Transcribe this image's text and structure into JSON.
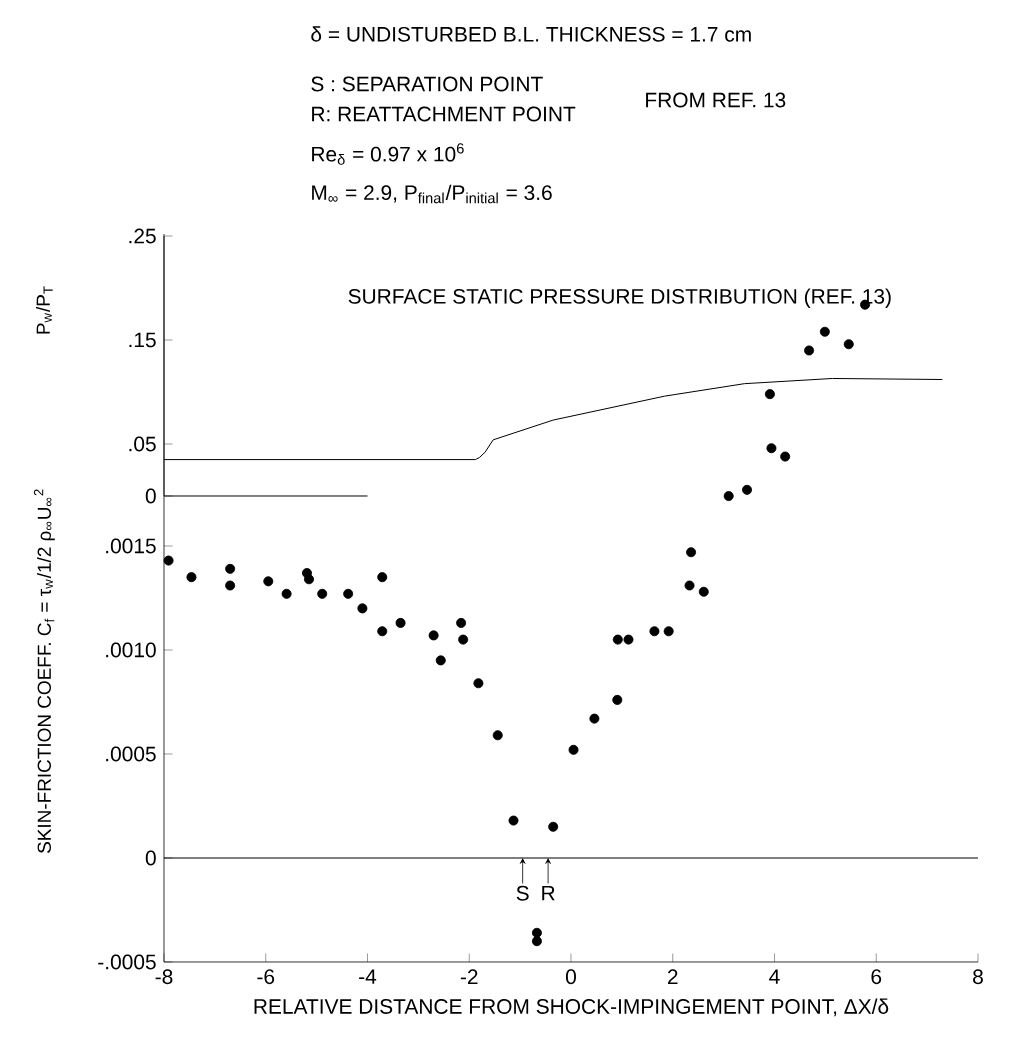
{
  "chart_data": [
    {
      "type": "line",
      "title": "SURFACE STATIC PRESSURE DISTRIBUTION (REF. 13)",
      "ylabel": "P$_{w}$/P$_{T}$",
      "annotations": [
        "δ = UNDISTURBED B.L. THICKNESS = 1.7 cm",
        "S : SEPARATION POINT",
        "R: REATTACHMENT POINT",
        "FROM REF. 13",
        "Re$_{δ}$ = 0.97 x 10$^{6}$",
        "M$_{∞}$ = 2.9, P$_{final}$/P$_{initial}$ = 3.6"
      ],
      "xlim": [
        -8,
        8
      ],
      "ylim": [
        0,
        0.25
      ],
      "yticks": [
        {
          "value": 0,
          "label": "0"
        },
        {
          "value": 0.05,
          "label": ".05"
        },
        {
          "value": 0.15,
          "label": ".15"
        },
        {
          "value": 0.25,
          "label": ".25"
        }
      ],
      "tick_labels": "y",
      "series": [
        {
          "color": "#000000",
          "x": [
            -8,
            -1.88,
            -1.8,
            -1.69,
            -1.53,
            -0.35,
            1.84,
            3.41,
            5.14,
            7.3
          ],
          "values": [
            0.035,
            0.035,
            0.037,
            0.042,
            0.054,
            0.073,
            0.096,
            0.108,
            0.113,
            0.112
          ]
        },
        {
          "color": "#000000",
          "x": [
            -8,
            -4
          ],
          "values": [
            0,
            0
          ]
        }
      ]
    },
    {
      "type": "scatter",
      "xlabel": "RELATIVE DISTANCE FROM SHOCK-IMPINGEMENT POINT, ΔX/δ",
      "ylabel": "SKIN-FRICTION COEFF. C$_{f}$ = τ$_{w}$/1/2 ρ$_{∞}$U$_{∞}$$^{2}$",
      "color": "#000000",
      "marker": "circle",
      "x": [
        -7.91,
        -7.46,
        -6.7,
        -6.7,
        -5.95,
        -5.59,
        -5.19,
        -5.15,
        -4.89,
        -4.38,
        -4.1,
        -3.71,
        -3.71,
        -3.35,
        -2.7,
        -2.56,
        -2.16,
        -2.12,
        -1.82,
        -1.44,
        -1.13,
        -0.35,
        -0.67,
        -0.67,
        0.05,
        0.46,
        0.91,
        0.92,
        1.13,
        1.64,
        1.92,
        2.33,
        2.36,
        2.61,
        3.1,
        3.46,
        3.94,
        4.21,
        3.91,
        4.68,
        4.99,
        5.46,
        5.78
      ],
      "values": [
        0.00143,
        0.00135,
        0.00139,
        0.00131,
        0.00133,
        0.00127,
        0.00137,
        0.00134,
        0.00127,
        0.00127,
        0.0012,
        0.00135,
        0.00109,
        0.00113,
        0.00107,
        0.00095,
        0.00113,
        0.00105,
        0.00084,
        0.00059,
        0.00018,
        0.00015,
        -0.00036,
        -0.0004,
        0.00052,
        0.00067,
        0.00076,
        0.00105,
        0.00105,
        0.00109,
        0.00109,
        0.00131,
        0.00147,
        0.00128,
        0.00174,
        0.00177,
        0.00197,
        0.00193,
        0.00223,
        0.00244,
        0.00253,
        0.00247,
        0.00266
      ],
      "xlim": [
        -8,
        8
      ],
      "ylim": [
        -0.0005,
        0.003
      ],
      "xticks": [
        -8,
        -6,
        -4,
        -2,
        0,
        2,
        4,
        6,
        8
      ],
      "yticks": [
        {
          "value": -0.0005,
          "label": "-.0005"
        },
        {
          "value": 0,
          "label": "0"
        },
        {
          "value": 0.0005,
          "label": ".0005"
        },
        {
          "value": 0.001,
          "label": ".0010"
        },
        {
          "value": 0.0015,
          "label": ".0015"
        }
      ],
      "ref_lines": [
        {
          "axis": "y",
          "value": 0
        }
      ],
      "annotations": [
        {
          "text": "S",
          "x": -0.95,
          "y": 0
        },
        {
          "text": "R",
          "x": -0.45,
          "y": 0
        }
      ]
    }
  ]
}
